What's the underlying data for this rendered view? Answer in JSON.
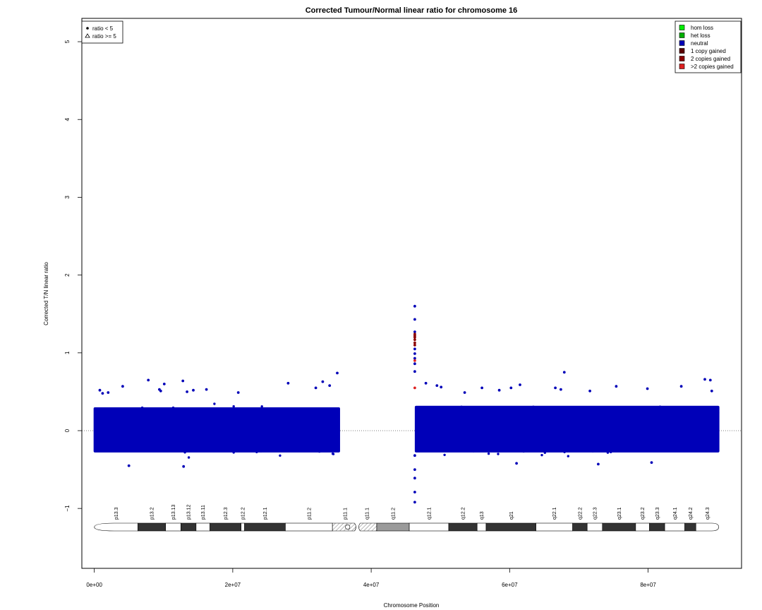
{
  "chart_data": {
    "type": "scatter",
    "title": "Corrected Tumour/Normal linear ratio for chromosome  16",
    "xlabel": "Chromosome Position",
    "ylabel": "Corrected T/N linear ratio",
    "xlim": [
      -1800000,
      93500000
    ],
    "ylim": [
      -1.77,
      5.3
    ],
    "x_ticks": [
      {
        "value": 0,
        "label": "0e+00"
      },
      {
        "value": 20000000,
        "label": "2e+07"
      },
      {
        "value": 40000000,
        "label": "4e+07"
      },
      {
        "value": 60000000,
        "label": "6e+07"
      },
      {
        "value": 80000000,
        "label": "8e+07"
      }
    ],
    "y_ticks": [
      {
        "value": -1,
        "label": "−1"
      },
      {
        "value": 0,
        "label": "0"
      },
      {
        "value": 1,
        "label": "1"
      },
      {
        "value": 2,
        "label": "2"
      },
      {
        "value": 3,
        "label": "3"
      },
      {
        "value": 4,
        "label": "4"
      },
      {
        "value": 5,
        "label": "5"
      }
    ],
    "reference_line": {
      "y": 0,
      "style": "dotted",
      "color": "#7f7f7f"
    },
    "shape_legend": {
      "position": "top-left",
      "entries": [
        {
          "label": "ratio < 5",
          "shape": "filled-circle"
        },
        {
          "label": "ratio >= 5",
          "shape": "open-triangle"
        }
      ]
    },
    "color_legend": {
      "position": "top-right",
      "entries": [
        {
          "label": "hom loss",
          "color": "#00ee00"
        },
        {
          "label": "het loss",
          "color": "#00b000"
        },
        {
          "label": "neutral",
          "color": "#0000b8"
        },
        {
          "label": "1 copy gained",
          "color": "#5a0000"
        },
        {
          "label": "2 copies gained",
          "color": "#8b0000"
        },
        {
          "label": ">2 copies gained",
          "color": "#dd2020"
        }
      ]
    },
    "series": [
      {
        "state": "neutral",
        "color": "#0000b8",
        "segments": [
          {
            "x_start": 0,
            "x_end": 35400000,
            "core_low": -0.28,
            "core_high": 0.3,
            "typical_min": -0.45,
            "typical_max": 0.45
          },
          {
            "x_start": 46400000,
            "x_end": 90200000,
            "core_low": -0.28,
            "core_high": 0.32,
            "typical_min": -0.45,
            "typical_max": 0.55
          }
        ],
        "points": [
          {
            "x": 800000,
            "y": 0.52
          },
          {
            "x": 1200000,
            "y": 0.48
          },
          {
            "x": 2000000,
            "y": 0.49
          },
          {
            "x": 4100000,
            "y": 0.57
          },
          {
            "x": 5000000,
            "y": -0.45
          },
          {
            "x": 7800000,
            "y": 0.65
          },
          {
            "x": 9600000,
            "y": 0.51
          },
          {
            "x": 9400000,
            "y": 0.53
          },
          {
            "x": 10100000,
            "y": 0.6
          },
          {
            "x": 12800000,
            "y": 0.64
          },
          {
            "x": 12900000,
            "y": -0.46
          },
          {
            "x": 13400000,
            "y": 0.5
          },
          {
            "x": 14300000,
            "y": 0.52
          },
          {
            "x": 16200000,
            "y": 0.53
          },
          {
            "x": 20800000,
            "y": 0.49
          },
          {
            "x": 28000000,
            "y": 0.61
          },
          {
            "x": 32000000,
            "y": 0.55
          },
          {
            "x": 33000000,
            "y": 0.63
          },
          {
            "x": 34000000,
            "y": 0.58
          },
          {
            "x": 35100000,
            "y": 0.74
          },
          {
            "x": 47900000,
            "y": 0.61
          },
          {
            "x": 49500000,
            "y": 0.58
          },
          {
            "x": 50100000,
            "y": 0.56
          },
          {
            "x": 53500000,
            "y": 0.49
          },
          {
            "x": 56000000,
            "y": 0.55
          },
          {
            "x": 58500000,
            "y": 0.52
          },
          {
            "x": 60200000,
            "y": 0.55
          },
          {
            "x": 61500000,
            "y": 0.59
          },
          {
            "x": 66600000,
            "y": 0.55
          },
          {
            "x": 67400000,
            "y": 0.53
          },
          {
            "x": 67900000,
            "y": 0.75
          },
          {
            "x": 71600000,
            "y": 0.51
          },
          {
            "x": 75400000,
            "y": 0.57
          },
          {
            "x": 79900000,
            "y": 0.54
          },
          {
            "x": 84800000,
            "y": 0.57
          },
          {
            "x": 88200000,
            "y": 0.66
          },
          {
            "x": 89000000,
            "y": 0.65
          },
          {
            "x": 89200000,
            "y": 0.51
          },
          {
            "x": 61000000,
            "y": -0.42
          },
          {
            "x": 72800000,
            "y": -0.43
          },
          {
            "x": 80500000,
            "y": -0.41
          }
        ]
      },
      {
        "state": "centromere-edge spike",
        "color": "#0000b8",
        "points": [
          {
            "x": 46300000,
            "y": 1.6
          },
          {
            "x": 46300000,
            "y": 1.43
          },
          {
            "x": 46300000,
            "y": 1.27
          },
          {
            "x": 46300000,
            "y": 1.05
          },
          {
            "x": 46300000,
            "y": 0.99
          },
          {
            "x": 46300000,
            "y": 0.93
          },
          {
            "x": 46300000,
            "y": 0.86
          },
          {
            "x": 46300000,
            "y": 0.76
          },
          {
            "x": 46300000,
            "y": -0.32
          },
          {
            "x": 46300000,
            "y": -0.5
          },
          {
            "x": 46300000,
            "y": -0.61
          },
          {
            "x": 46300000,
            "y": -0.79
          },
          {
            "x": 46300000,
            "y": -0.92
          }
        ]
      },
      {
        "state": "2 copies gained",
        "color": "#8b0000",
        "points": [
          {
            "x": 46300000,
            "y": 1.24
          },
          {
            "x": 46300000,
            "y": 1.22
          },
          {
            "x": 46300000,
            "y": 1.2
          },
          {
            "x": 46300000,
            "y": 1.17
          },
          {
            "x": 46300000,
            "y": 1.13
          },
          {
            "x": 46300000,
            "y": 1.1
          }
        ]
      },
      {
        "state": ">2 copies gained",
        "color": "#dd2020",
        "points": [
          {
            "x": 46300000,
            "y": 0.9
          },
          {
            "x": 46300000,
            "y": 0.55
          }
        ]
      }
    ],
    "ideogram": {
      "chromosome_length": 90200000,
      "centromere": 36600000,
      "bands": [
        {
          "name": "p13.3",
          "start": 0,
          "end": 6300000,
          "stain": "gneg"
        },
        {
          "name": "p13.2",
          "start": 6300000,
          "end": 10300000,
          "stain": "gpos"
        },
        {
          "name": "p13.13",
          "start": 10300000,
          "end": 12500000,
          "stain": "gneg"
        },
        {
          "name": "p13.12",
          "start": 12500000,
          "end": 14700000,
          "stain": "gpos"
        },
        {
          "name": "p13.11",
          "start": 14700000,
          "end": 16700000,
          "stain": "gneg"
        },
        {
          "name": "p12.3",
          "start": 16700000,
          "end": 21200000,
          "stain": "gpos"
        },
        {
          "name": "p12.2",
          "start": 21200000,
          "end": 21700000,
          "stain": "gneg"
        },
        {
          "name": "p12.1",
          "start": 21700000,
          "end": 27600000,
          "stain": "gpos"
        },
        {
          "name": "p11.2",
          "start": 27600000,
          "end": 34400000,
          "stain": "gneg"
        },
        {
          "name": "p11.1",
          "start": 34400000,
          "end": 38000000,
          "stain": "acen"
        },
        {
          "name": "q11.1",
          "start": 38000000,
          "end": 40800000,
          "stain": "acen"
        },
        {
          "name": "q11.2",
          "start": 40800000,
          "end": 45500000,
          "stain": "gvar"
        },
        {
          "name": "q12.1",
          "start": 45500000,
          "end": 51200000,
          "stain": "gneg"
        },
        {
          "name": "q12.2",
          "start": 51200000,
          "end": 55300000,
          "stain": "gpos"
        },
        {
          "name": "q13",
          "start": 55300000,
          "end": 56600000,
          "stain": "gneg"
        },
        {
          "name": "q21",
          "start": 56600000,
          "end": 63800000,
          "stain": "gpos"
        },
        {
          "name": "q22.1",
          "start": 63800000,
          "end": 69100000,
          "stain": "gneg"
        },
        {
          "name": "q22.2",
          "start": 69100000,
          "end": 71200000,
          "stain": "gpos"
        },
        {
          "name": "q22.3",
          "start": 71200000,
          "end": 73400000,
          "stain": "gneg"
        },
        {
          "name": "q23.1",
          "start": 73400000,
          "end": 78200000,
          "stain": "gpos"
        },
        {
          "name": "q23.2",
          "start": 78200000,
          "end": 80200000,
          "stain": "gneg"
        },
        {
          "name": "q23.3",
          "start": 80200000,
          "end": 82400000,
          "stain": "gpos"
        },
        {
          "name": "q24.1",
          "start": 82400000,
          "end": 85300000,
          "stain": "gneg"
        },
        {
          "name": "q24.2",
          "start": 85300000,
          "end": 86900000,
          "stain": "gpos"
        },
        {
          "name": "q24.3",
          "start": 86900000,
          "end": 90200000,
          "stain": "gneg"
        }
      ]
    }
  }
}
